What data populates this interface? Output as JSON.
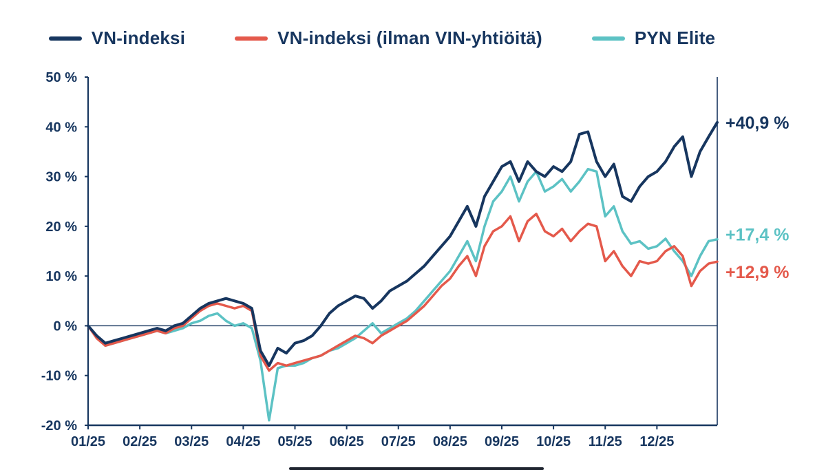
{
  "chart_data": {
    "type": "line",
    "title": "",
    "xlabel": "",
    "ylabel": "",
    "ylim": [
      -20,
      50
    ],
    "grid": "zero-line-only",
    "legend_position": "top",
    "axis_color": "#17365f",
    "label_color": "#17365f",
    "y_ticks": [
      50,
      40,
      30,
      20,
      10,
      0,
      -10,
      -20
    ],
    "y_ticklabels": [
      "50 %",
      "40 %",
      "30 %",
      "20 %",
      "10 %",
      "0 %",
      "-10 %",
      "-20 %"
    ],
    "x_ticklabels": [
      "01/25",
      "02/25",
      "03/25",
      "04/25",
      "05/25",
      "06/25",
      "07/25",
      "08/25",
      "09/25",
      "10/25",
      "11/25",
      "12/25"
    ],
    "x_tick_indices": [
      0,
      6,
      12,
      18,
      24,
      30,
      36,
      42,
      48,
      54,
      60,
      66
    ],
    "series": [
      {
        "name": "VN-indeksi",
        "color": "#17365f",
        "end_label": "+40,9 %",
        "final_value": 40.9,
        "values": [
          0,
          -2,
          -3.5,
          -3,
          -2.5,
          -2,
          -1.5,
          -1,
          -0.5,
          -1,
          0,
          0.5,
          2,
          3.5,
          4.5,
          5,
          5.5,
          5,
          4.5,
          3.5,
          -5,
          -8,
          -4.5,
          -5.5,
          -3.5,
          -3,
          -2,
          0,
          2.5,
          4,
          5,
          6,
          5.5,
          3.5,
          5,
          7,
          8,
          9,
          10.5,
          12,
          14,
          16,
          18,
          21,
          24,
          20,
          26,
          29,
          32,
          33,
          29,
          33,
          31,
          30,
          32,
          31,
          33,
          38.5,
          39,
          33,
          30,
          32.5,
          26,
          25,
          28,
          30,
          31,
          33,
          36,
          38,
          30,
          35,
          38,
          40.9
        ]
      },
      {
        "name": "VN-indeksi (ilman VIN-yhtiöitä)",
        "color": "#e4594b",
        "end_label": "+12,9 %",
        "final_value": 12.9,
        "values": [
          0,
          -2.5,
          -4,
          -3.5,
          -3,
          -2.5,
          -2,
          -1.5,
          -1,
          -1.5,
          -0.5,
          0,
          1.5,
          3,
          4,
          4.5,
          4,
          3.5,
          4,
          3,
          -6,
          -9,
          -7.5,
          -8,
          -7.5,
          -7,
          -6.5,
          -6,
          -5,
          -4,
          -3,
          -2,
          -2.5,
          -3.5,
          -2,
          -1,
          0,
          1,
          2.5,
          4,
          6,
          8,
          9.5,
          12,
          14,
          10,
          16,
          19,
          20,
          22,
          17,
          21,
          22.5,
          19,
          18,
          19.5,
          17,
          19,
          20.5,
          20,
          13,
          15,
          12,
          10,
          13,
          12.5,
          13,
          15,
          16,
          14,
          8,
          11,
          12.5,
          12.9
        ]
      },
      {
        "name": "PYN Elite",
        "color": "#5cc2c4",
        "end_label": "+17,4 %",
        "final_value": 17.4,
        "values": [
          0,
          -2,
          -4,
          -3.5,
          -3,
          -2.5,
          -2,
          -1.5,
          -1,
          -1.5,
          -1,
          -0.5,
          0.5,
          1,
          2,
          2.5,
          1,
          0,
          0.5,
          -0.5,
          -7,
          -19,
          -8.5,
          -8,
          -8,
          -7.5,
          -6.5,
          -6,
          -5,
          -4.5,
          -3.5,
          -2.5,
          -1,
          0.5,
          -1.5,
          -0.5,
          0.5,
          1.5,
          3,
          5,
          7,
          9,
          11,
          14,
          17,
          13,
          20,
          25,
          27,
          30,
          25,
          29,
          31,
          27,
          28,
          29.5,
          27,
          29,
          31.5,
          31,
          22,
          24,
          19,
          16.5,
          17,
          15.5,
          16,
          17.5,
          15,
          13,
          10,
          14,
          17,
          17.4
        ]
      }
    ]
  }
}
